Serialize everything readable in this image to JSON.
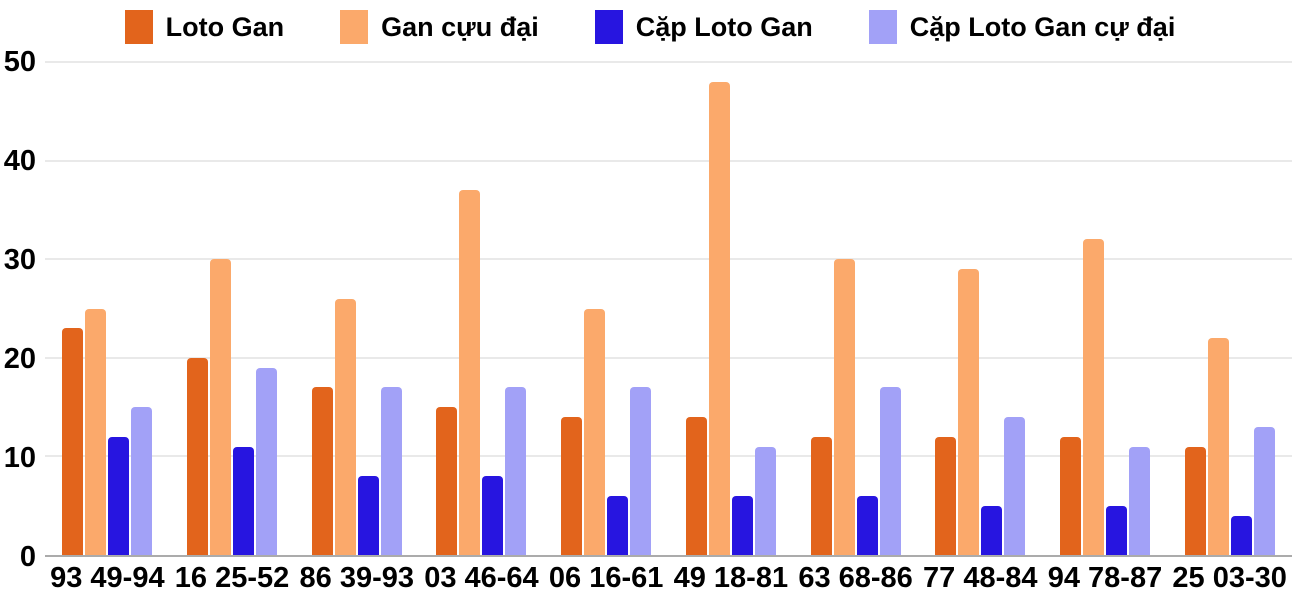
{
  "chart_data": {
    "type": "bar",
    "title": "",
    "xlabel": "",
    "ylabel": "",
    "categories": [
      "93 49-94",
      "16 25-52",
      "86 39-93",
      "03 46-64",
      "06 16-61",
      "49 18-81",
      "63 68-86",
      "77 48-84",
      "94 78-87",
      "25 03-30"
    ],
    "series": [
      {
        "name": "Loto Gan",
        "color": "#e2641c",
        "values": [
          23,
          20,
          17,
          15,
          14,
          14,
          12,
          12,
          12,
          11
        ]
      },
      {
        "name": "Gan cựu đại",
        "color": "#fba96b",
        "values": [
          25,
          30,
          26,
          37,
          25,
          48,
          30,
          29,
          32,
          22
        ]
      },
      {
        "name": "Cặp Loto Gan",
        "color": "#2715e0",
        "values": [
          12,
          11,
          8,
          8,
          6,
          6,
          6,
          5,
          5,
          4
        ]
      },
      {
        "name": "Cặp Loto Gan cự đại",
        "color": "#a2a1f7",
        "values": [
          15,
          19,
          17,
          17,
          17,
          11,
          17,
          14,
          11,
          13
        ]
      }
    ],
    "ylim": [
      0,
      50
    ],
    "yticks": [
      0,
      10,
      20,
      30,
      40,
      50
    ],
    "grid": true,
    "legend_position": "top",
    "colors": {
      "gridline": "#e9e9e9",
      "axis_line": "#ababab",
      "text": "#000000",
      "background": "#ffffff"
    }
  }
}
